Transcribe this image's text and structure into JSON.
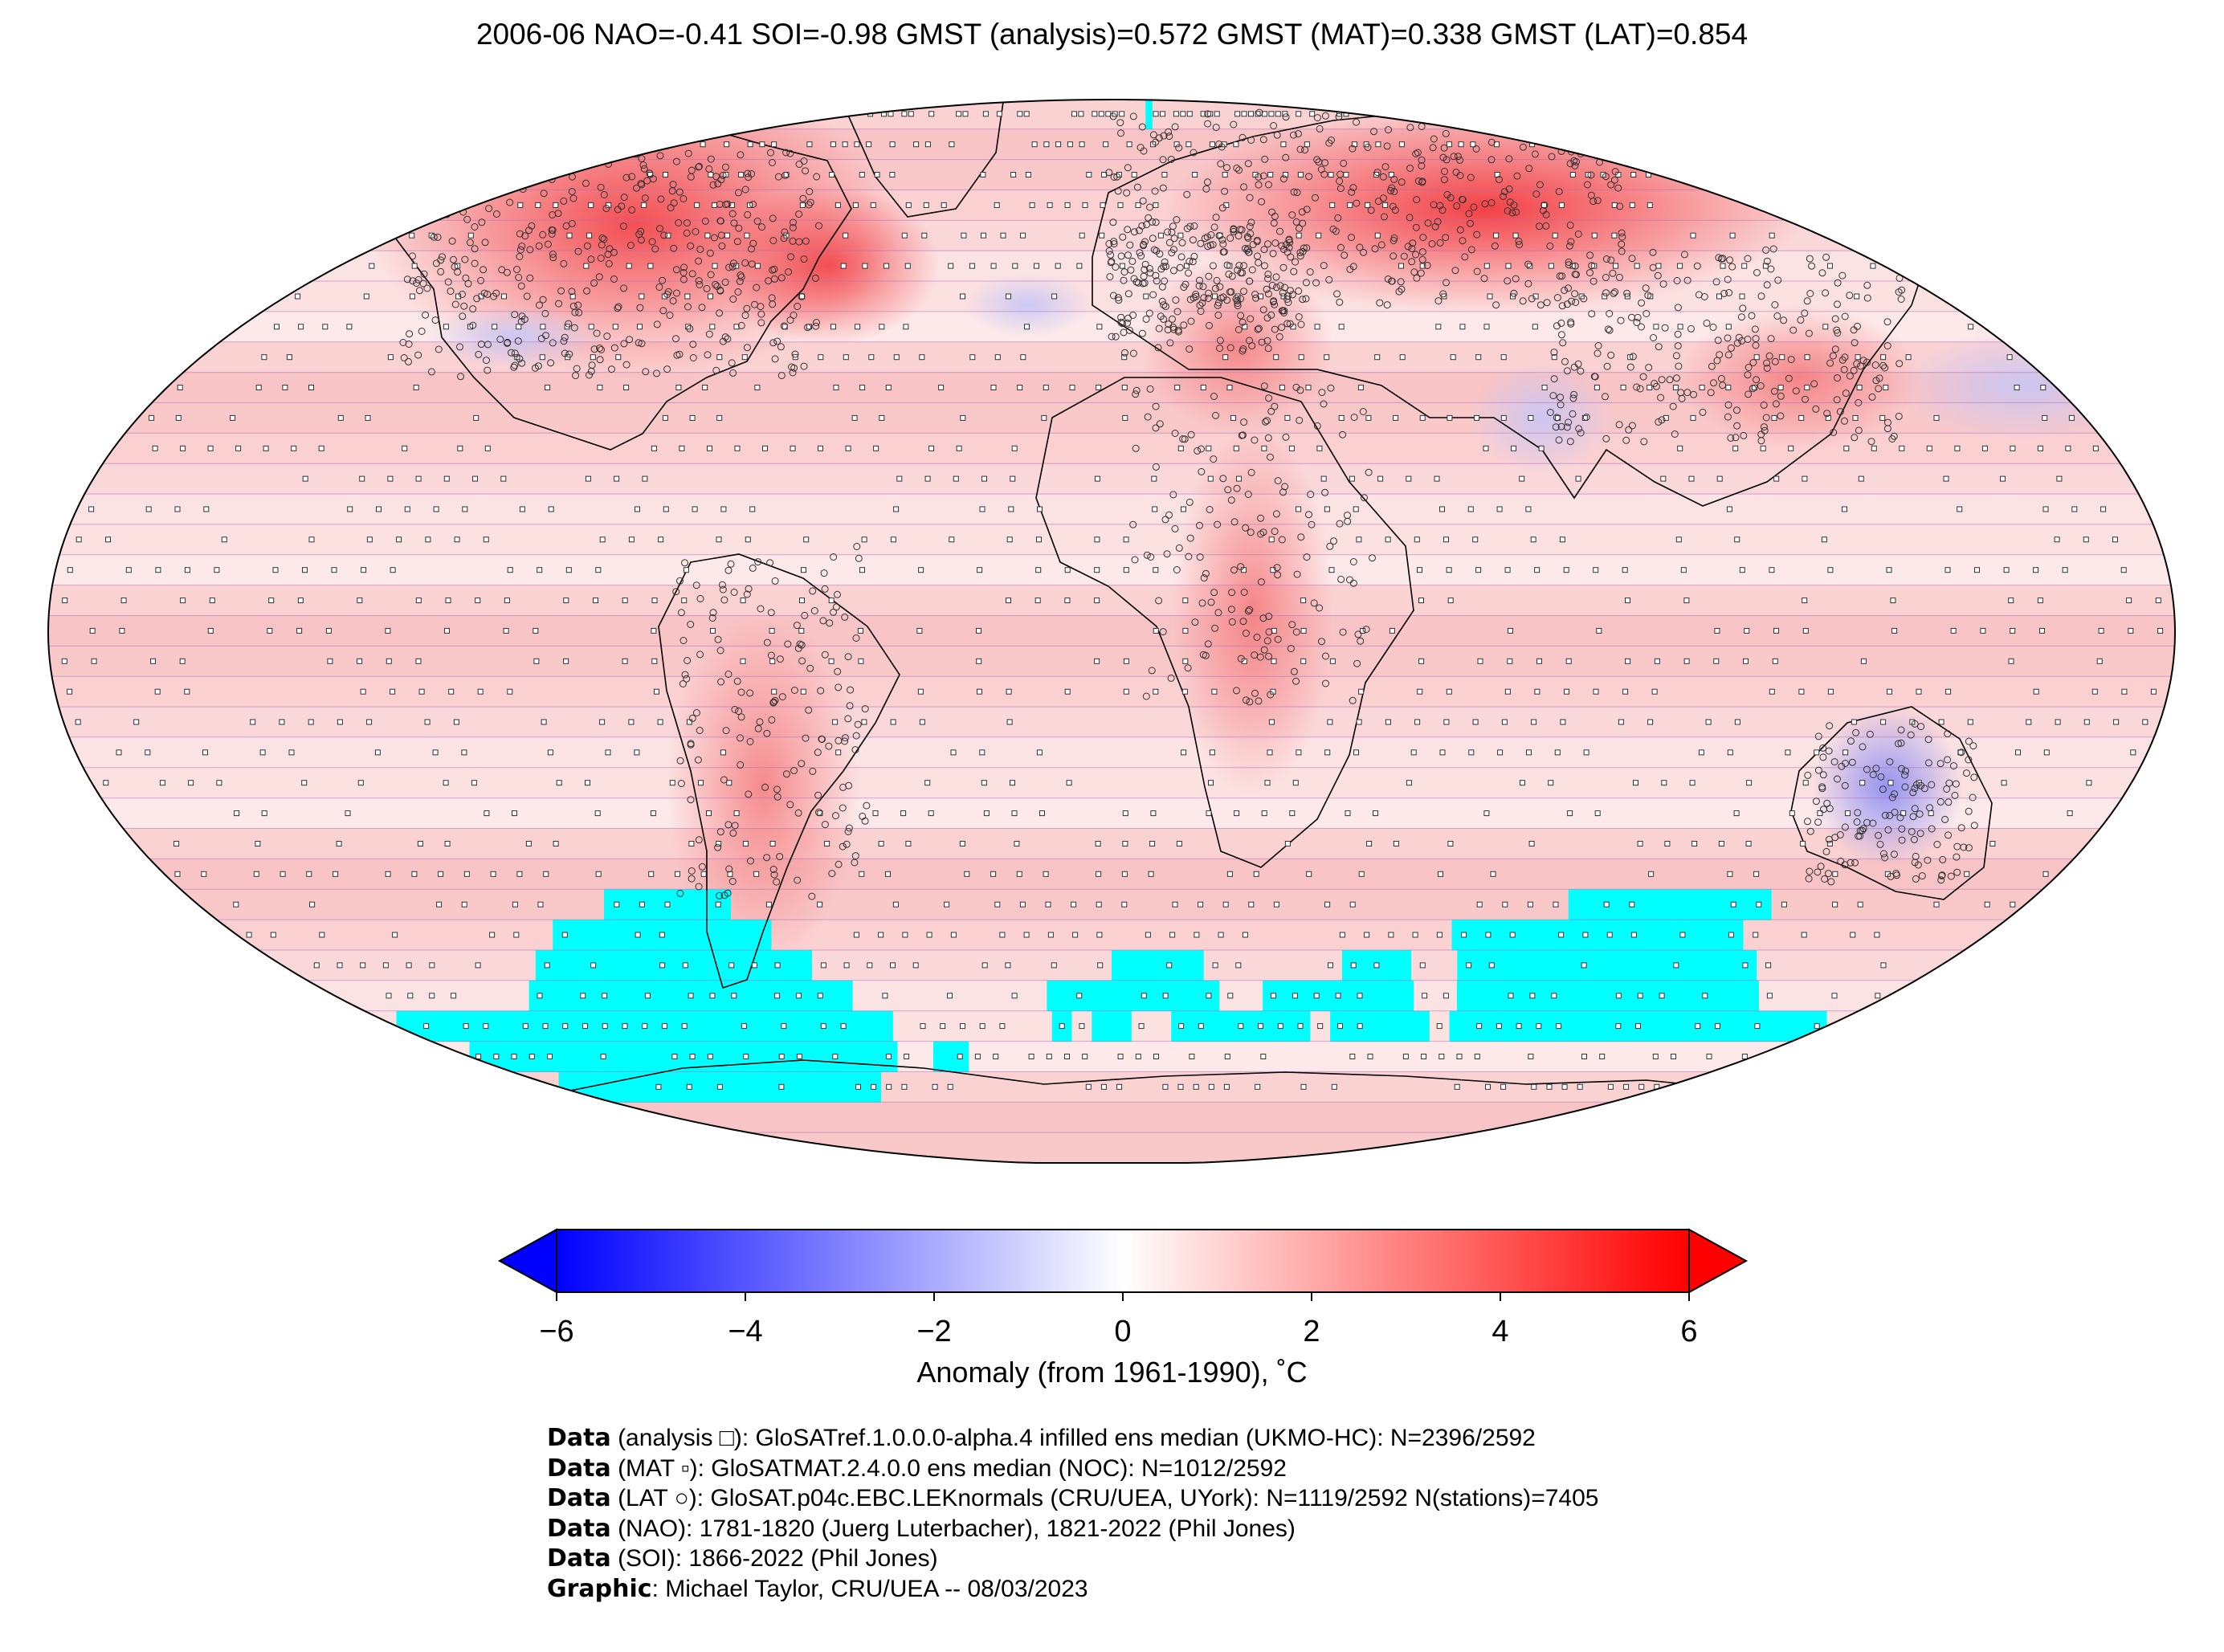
{
  "title": "2006-06 NAO=-0.41 SOI=-0.98 GMST (analysis)=0.572 GMST (MAT)=0.338 GMST (LAT)=0.854",
  "colorbar": {
    "min": -6,
    "max": 6,
    "ticks": [
      "−6",
      "−4",
      "−2",
      "0",
      "2",
      "4",
      "6"
    ],
    "tick_values": [
      -6,
      -4,
      -2,
      0,
      2,
      4,
      6
    ],
    "label": "Anomaly (from 1961-1990), ˚C",
    "extend": "both",
    "colors": {
      "low": "#0000ff",
      "mid": "#ffffff",
      "high": "#ff0000"
    }
  },
  "map": {
    "projection": "Robinson",
    "grid": "5° x 5°",
    "no_data_color": "#00ffff",
    "grid_line_color": "#b06ec0",
    "anomaly_pattern": [
      {
        "region": "North America / Canada",
        "anomaly": 3
      },
      {
        "region": "Eastern Europe / Siberia",
        "anomaly": 4
      },
      {
        "region": "Central Africa",
        "anomaly": 2.5
      },
      {
        "region": "South America",
        "anomaly": 2
      },
      {
        "region": "Western Australia",
        "anomaly": -2.5
      },
      {
        "region": "India",
        "anomaly": -1.5
      },
      {
        "region": "North Pacific",
        "anomaly": -1
      },
      {
        "region": "Southern Ocean",
        "anomaly": "no data"
      }
    ]
  },
  "credits": [
    {
      "bold": "Data",
      "text": " (analysis □): GloSATref.1.0.0.0-alpha.4 infilled ens median (UKMO-HC): N=2396/2592"
    },
    {
      "bold": "Data",
      "text": " (MAT ▫): GloSATMAT.2.4.0.0 ens median (NOC): N=1012/2592"
    },
    {
      "bold": "Data",
      "text": " (LAT ○): GloSAT.p04c.EBC.LEKnormals (CRU/UEA, UYork): N=1119/2592 N(stations)=7405"
    },
    {
      "bold": "Data",
      "text": " (NAO): 1781-1820 (Juerg Luterbacher), 1821-2022 (Phil Jones)"
    },
    {
      "bold": "Data",
      "text": " (SOI): 1866-2022 (Phil Jones)"
    },
    {
      "bold": "Graphic",
      "text": ": Michael Taylor, CRU/UEA -- 08/03/2023"
    }
  ]
}
